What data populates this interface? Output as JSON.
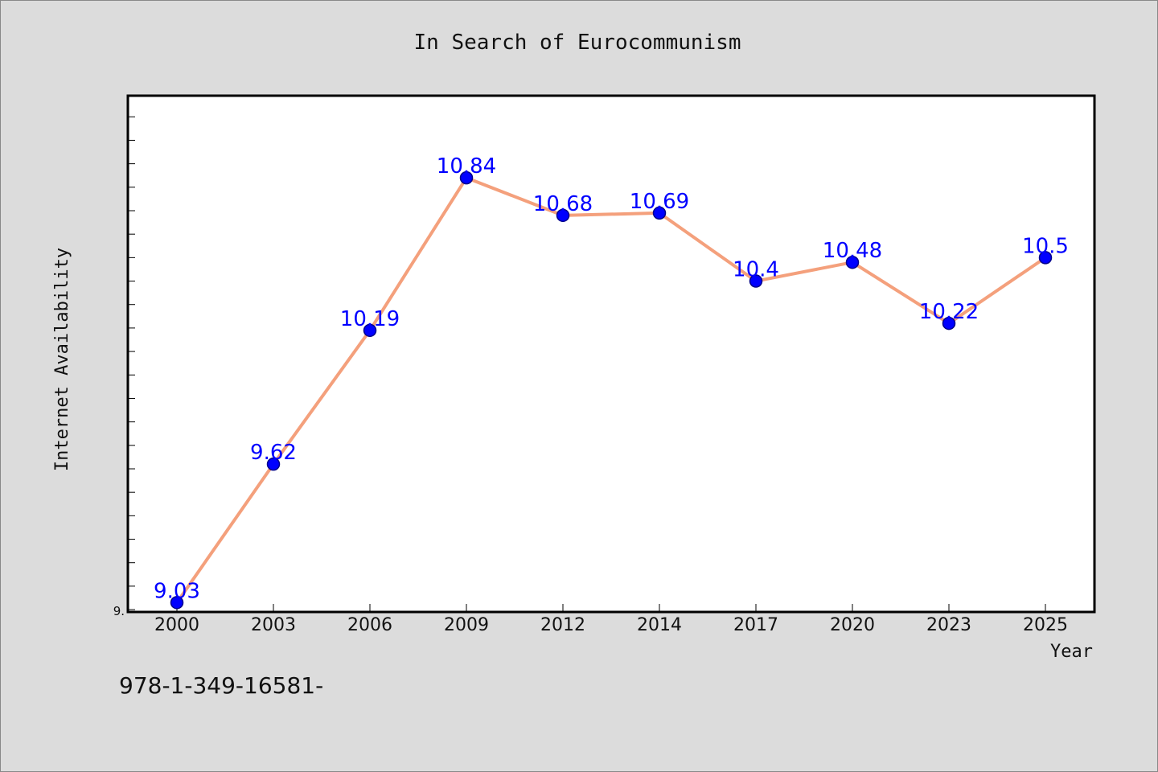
{
  "colors": {
    "background": "#dcdcdc",
    "plot_background": "#ffffff",
    "line": "#f4a07c",
    "marker": "#0000ff",
    "marker_edge": "#00008b",
    "data_label": "#0000ff"
  },
  "footer": {
    "code": "978-1-349-16581-"
  },
  "chart_data": {
    "type": "line",
    "title": "In Search of Eurocommunism",
    "xlabel": "Year",
    "ylabel": "Internet Availability",
    "y_min_label": "9.",
    "categories": [
      "2000",
      "2003",
      "2006",
      "2009",
      "2012",
      "2014",
      "2017",
      "2020",
      "2023",
      "2025"
    ],
    "series": [
      {
        "values": [
          9.03,
          9.62,
          10.19,
          10.84,
          10.68,
          10.69,
          10.4,
          10.48,
          10.22,
          10.5
        ],
        "labels": [
          "9.03",
          "9.62",
          "10.19",
          "10.84",
          "10.68",
          "10.69",
          "10.4",
          "10.48",
          "10.22",
          "10.5"
        ]
      }
    ],
    "ylim": [
      8.99,
      11.19
    ],
    "y_minor_tick_step": 0.1,
    "grid": false,
    "legend": "none"
  }
}
